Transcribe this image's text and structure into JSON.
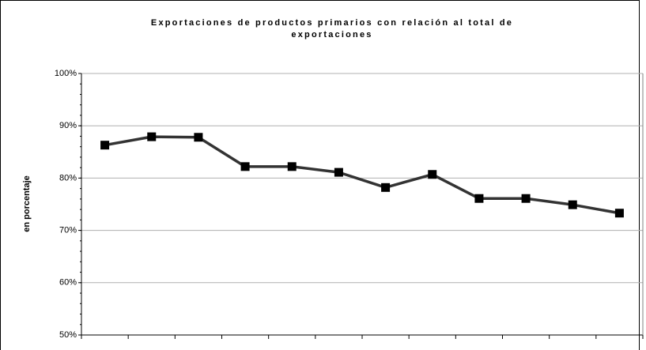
{
  "chart_data": {
    "type": "line",
    "title": "Exportaciones de productos primarios con relación al total de exportaciones",
    "y_label": "en porcentaje",
    "categories": [
      null,
      null,
      null,
      null,
      null,
      null,
      null,
      null,
      null,
      null,
      null,
      null
    ],
    "values": [
      86.3,
      87.9,
      87.8,
      82.2,
      82.2,
      81.1,
      78.2,
      80.7,
      76.1,
      76.1,
      74.9,
      73.3
    ],
    "color": "#333333",
    "marker_color": "#000000",
    "ylim": [
      50,
      100
    ],
    "yticks": [
      {
        "value": 50,
        "label": "50%"
      },
      {
        "value": 60,
        "label": "60%"
      },
      {
        "value": 70,
        "label": "70%"
      },
      {
        "value": 80,
        "label": "80%"
      },
      {
        "value": 90,
        "label": "90%"
      },
      {
        "value": 100,
        "label": "100%"
      }
    ],
    "grid": true
  }
}
